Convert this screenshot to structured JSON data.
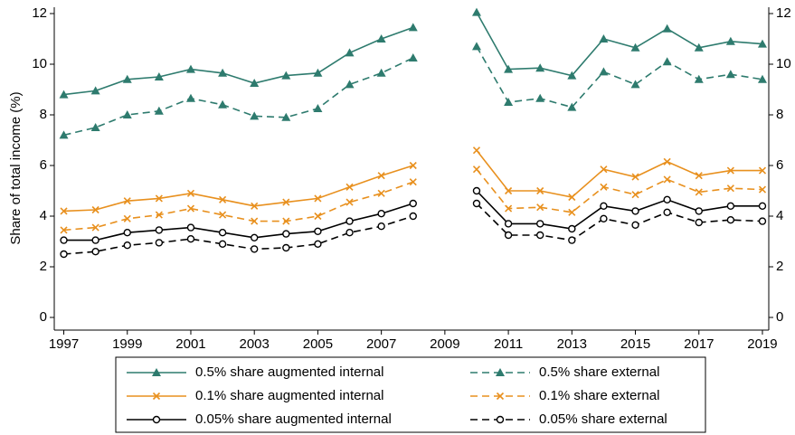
{
  "chart_data": {
    "type": "line",
    "y_label": "Share of total income (%)",
    "x": [
      1997,
      1998,
      1999,
      2000,
      2001,
      2002,
      2003,
      2004,
      2005,
      2006,
      2007,
      2008,
      2009,
      2010,
      2011,
      2012,
      2013,
      2014,
      2015,
      2016,
      2017,
      2018,
      2019
    ],
    "xlim": [
      1996.7,
      2019.2
    ],
    "xticks": [
      1997,
      1999,
      2001,
      2003,
      2005,
      2007,
      2009,
      2011,
      2013,
      2015,
      2017,
      2019
    ],
    "ylim": [
      -0.5,
      12.25
    ],
    "yticks": [
      0,
      2,
      4,
      6,
      8,
      10,
      12
    ],
    "y2lim": [
      -0.5,
      12.25
    ],
    "y2ticks": [
      0,
      2,
      4,
      6,
      8,
      10,
      12
    ],
    "legend": "bottom",
    "series": [
      {
        "name": "0.5% share augmented internal",
        "color": "#2e7b6e",
        "marker": "triangle",
        "dash": false,
        "values": [
          8.8,
          8.95,
          9.4,
          9.5,
          9.8,
          9.65,
          9.25,
          9.55,
          9.65,
          10.45,
          11.0,
          11.45,
          null,
          12.05,
          9.8,
          9.85,
          9.55,
          11.0,
          10.65,
          11.4,
          10.65,
          10.9,
          10.8
        ]
      },
      {
        "name": "0.5% share external",
        "color": "#2e7b6e",
        "marker": "triangle",
        "dash": true,
        "values": [
          7.2,
          7.5,
          8.0,
          8.15,
          8.65,
          8.4,
          7.95,
          7.9,
          8.25,
          9.2,
          9.65,
          10.25,
          null,
          10.7,
          8.5,
          8.65,
          8.3,
          9.7,
          9.2,
          10.1,
          9.4,
          9.6,
          9.4
        ]
      },
      {
        "name": "0.1% share augmented internal",
        "color": "#e8901e",
        "marker": "x",
        "dash": false,
        "values": [
          4.2,
          4.25,
          4.6,
          4.7,
          4.9,
          4.65,
          4.4,
          4.55,
          4.7,
          5.15,
          5.6,
          6.0,
          null,
          6.6,
          5.0,
          5.0,
          4.75,
          5.85,
          5.55,
          6.15,
          5.6,
          5.8,
          5.8
        ]
      },
      {
        "name": "0.1% share external",
        "color": "#e8901e",
        "marker": "x",
        "dash": true,
        "values": [
          3.45,
          3.55,
          3.9,
          4.05,
          4.3,
          4.05,
          3.8,
          3.8,
          4.0,
          4.55,
          4.9,
          5.35,
          null,
          5.85,
          4.3,
          4.35,
          4.15,
          5.15,
          4.85,
          5.45,
          4.95,
          5.1,
          5.05
        ]
      },
      {
        "name": "0.05% share augmented internal",
        "color": "#000000",
        "marker": "circle",
        "dash": false,
        "values": [
          3.05,
          3.05,
          3.35,
          3.45,
          3.55,
          3.35,
          3.15,
          3.3,
          3.4,
          3.8,
          4.1,
          4.5,
          null,
          5.0,
          3.7,
          3.7,
          3.5,
          4.4,
          4.2,
          4.65,
          4.2,
          4.4,
          4.4
        ]
      },
      {
        "name": "0.05% share external",
        "color": "#000000",
        "marker": "circle",
        "dash": true,
        "values": [
          2.5,
          2.6,
          2.85,
          2.95,
          3.1,
          2.9,
          2.7,
          2.75,
          2.9,
          3.35,
          3.6,
          4.0,
          null,
          4.5,
          3.25,
          3.25,
          3.05,
          3.9,
          3.65,
          4.15,
          3.75,
          3.85,
          3.8
        ]
      }
    ]
  }
}
